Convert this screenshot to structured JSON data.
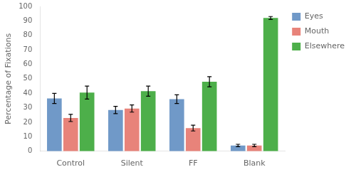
{
  "chart_data": {
    "type": "bar",
    "categories": [
      "Control",
      "Silent",
      "FF",
      "Blank"
    ],
    "series": [
      {
        "name": "Eyes",
        "color": "#7099C8",
        "values": [
          36.5,
          28.5,
          36.0,
          4.0
        ],
        "errors": [
          3.5,
          2.5,
          3.0,
          0.8
        ]
      },
      {
        "name": "Mouth",
        "color": "#E8837A",
        "values": [
          23.0,
          29.5,
          16.0,
          4.0
        ],
        "errors": [
          2.5,
          2.5,
          2.0,
          0.8
        ]
      },
      {
        "name": "Elsewhere",
        "color": "#4DAF4A",
        "values": [
          40.5,
          41.5,
          48.0,
          92.0
        ],
        "errors": [
          4.5,
          3.5,
          3.5,
          1.0
        ]
      }
    ],
    "ylabel": "Percentage of Fixations",
    "ylim": [
      0,
      100
    ],
    "yticks": [
      0,
      10,
      20,
      30,
      40,
      50,
      60,
      70,
      80,
      90,
      100
    ],
    "grid": false,
    "legend": "right"
  }
}
